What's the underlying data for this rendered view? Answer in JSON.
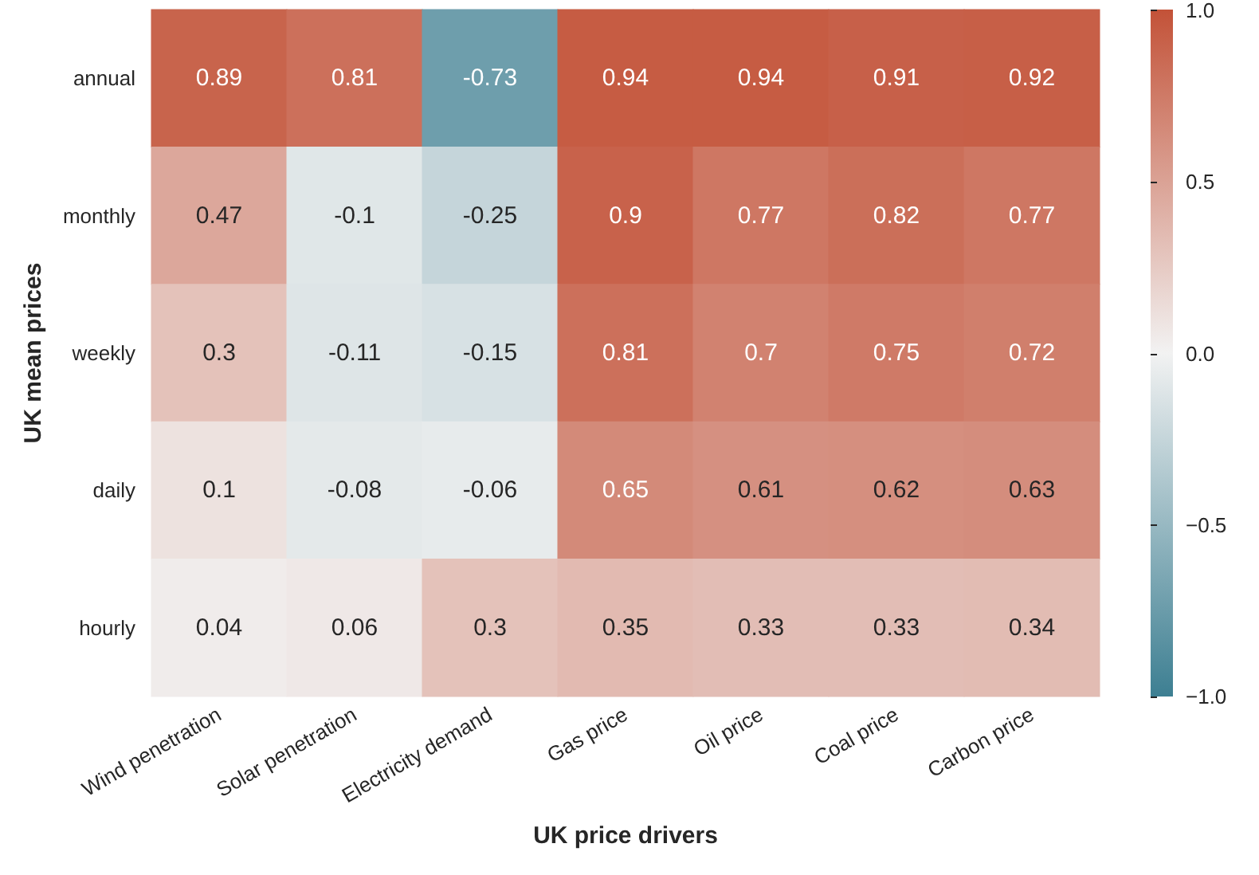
{
  "chart_data": {
    "type": "heatmap",
    "xlabel": "UK price drivers",
    "ylabel": "UK mean prices",
    "categories": [
      "Wind penetration",
      "Solar penetration",
      "Electricity demand",
      "Gas price",
      "Oil price",
      "Coal price",
      "Carbon price"
    ],
    "y_categories": [
      "annual",
      "monthly",
      "weekly",
      "daily",
      "hourly"
    ],
    "cells": [
      [
        0.89,
        0.81,
        -0.73,
        0.94,
        0.94,
        0.91,
        0.92
      ],
      [
        0.47,
        -0.1,
        -0.25,
        0.9,
        0.77,
        0.82,
        0.77
      ],
      [
        0.3,
        -0.11,
        -0.15,
        0.81,
        0.7,
        0.75,
        0.72
      ],
      [
        0.1,
        -0.08,
        -0.06,
        0.65,
        0.61,
        0.62,
        0.63
      ],
      [
        0.04,
        0.06,
        0.3,
        0.35,
        0.33,
        0.33,
        0.34
      ]
    ],
    "clim": [
      -1,
      1
    ],
    "cticks": [
      {
        "value": -1,
        "label": "−1.0"
      },
      {
        "value": -0.5,
        "label": "−0.5"
      },
      {
        "value": 0,
        "label": "0.0"
      },
      {
        "value": 0.5,
        "label": "0.5"
      },
      {
        "value": 1,
        "label": "1.0"
      }
    ],
    "data_labels": true
  }
}
